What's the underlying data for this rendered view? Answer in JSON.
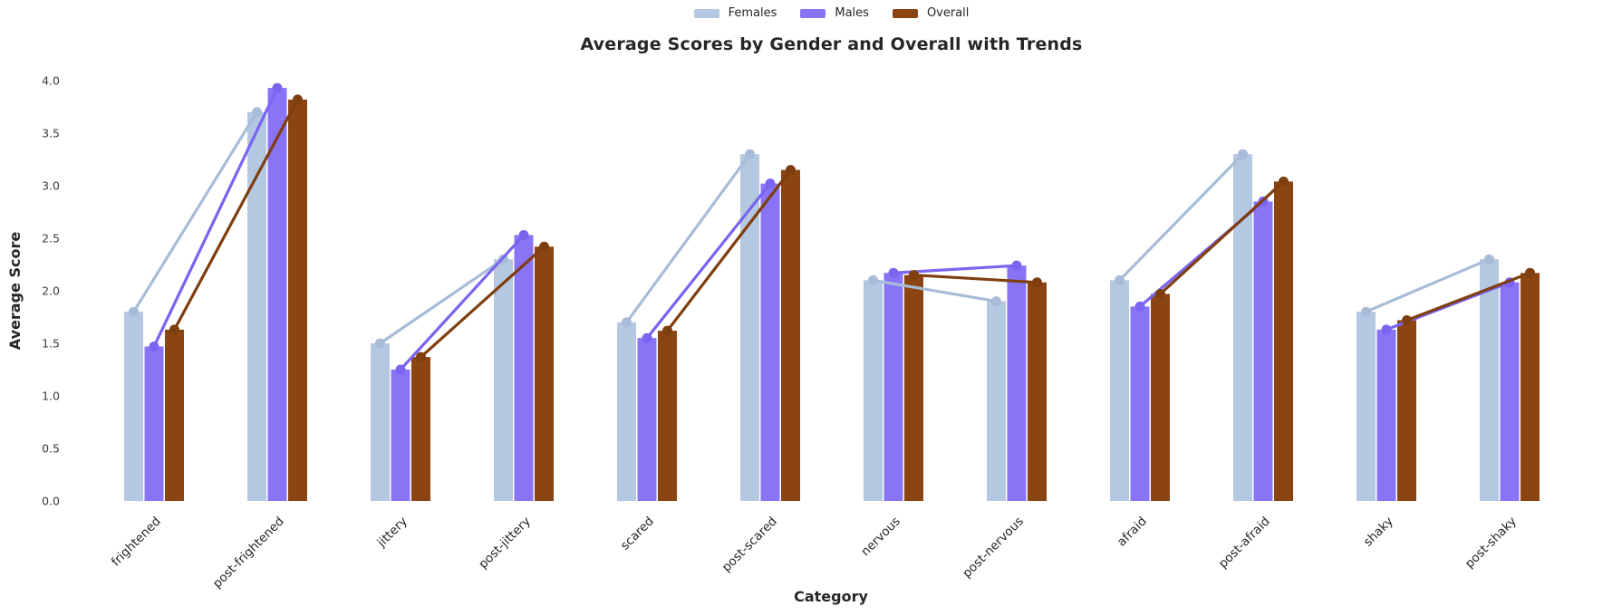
{
  "chart_data": {
    "type": "bar",
    "title": "Average Scores by Gender and Overall with Trends",
    "xlabel": "Category",
    "ylabel": "Average Score",
    "ylim": [
      0.0,
      4.0
    ],
    "ytick_step": 0.5,
    "grid": false,
    "legend_position": "top-center",
    "markers": true,
    "categories": [
      "frightened",
      "post-frightened",
      "jittery",
      "post-jittery",
      "scared",
      "post-scared",
      "nervous",
      "post-nervous",
      "afraid",
      "post-afraid",
      "shaky",
      "post-shaky"
    ],
    "series": [
      {
        "name": "Females",
        "color": "#b5c8e2",
        "line_color": "#a8bcd8",
        "values": [
          1.8,
          3.7,
          1.5,
          2.3,
          1.7,
          3.3,
          2.1,
          1.9,
          2.1,
          3.3,
          1.8,
          2.3
        ]
      },
      {
        "name": "Males",
        "color": "#8874f4",
        "line_color": "#7a64f0",
        "values": [
          1.47,
          3.93,
          1.25,
          2.53,
          1.55,
          3.02,
          2.17,
          2.24,
          1.85,
          2.85,
          1.63,
          2.08
        ]
      },
      {
        "name": "Overall",
        "color": "#8b4513",
        "line_color": "#7f3e0e",
        "values": [
          1.63,
          3.82,
          1.37,
          2.42,
          1.62,
          3.15,
          2.15,
          2.08,
          1.97,
          3.04,
          1.72,
          2.17
        ]
      }
    ],
    "trend_pairs": [
      [
        0,
        1
      ],
      [
        2,
        3
      ],
      [
        4,
        5
      ],
      [
        6,
        7
      ],
      [
        8,
        9
      ],
      [
        10,
        11
      ]
    ]
  }
}
